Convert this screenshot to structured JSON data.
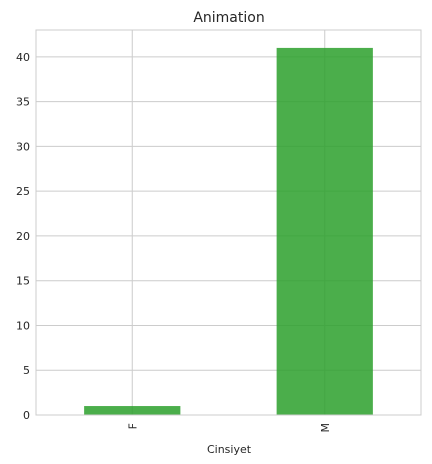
{
  "chart_data": {
    "type": "bar",
    "title": "Animation",
    "xlabel": "Cinsiyet",
    "ylabel": "",
    "categories": [
      "F",
      "M"
    ],
    "values": [
      1,
      41
    ],
    "ylim": [
      0,
      43
    ],
    "yticks": [
      "0",
      "5",
      "10",
      "15",
      "20",
      "25",
      "30",
      "35",
      "40"
    ],
    "grid": true,
    "bar_color": "#2ca02c",
    "grid_color": "#cccccc"
  }
}
